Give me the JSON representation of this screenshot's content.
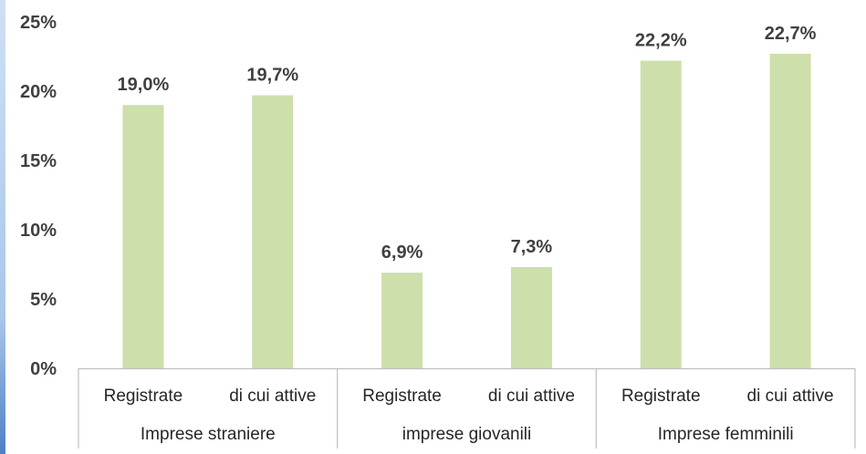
{
  "chart_data": {
    "type": "bar",
    "categories": [
      "Registrate",
      "di cui attive",
      "Registrate",
      "di cui attive",
      "Registrate",
      "di cui attive"
    ],
    "groups": [
      {
        "label": "Imprese straniere",
        "categories": [
          "Registrate",
          "di cui attive"
        ]
      },
      {
        "label": "imprese giovanili",
        "categories": [
          "Registrate",
          "di cui attive"
        ]
      },
      {
        "label": "Imprese femminili",
        "categories": [
          "Registrate",
          "di cui attive"
        ]
      }
    ],
    "values": [
      19.0,
      19.7,
      6.9,
      7.3,
      22.2,
      22.7
    ],
    "data_labels": [
      "19,0%",
      "19,7%",
      "6,9%",
      "7,3%",
      "22,2%",
      "22,7%"
    ],
    "yticks": [
      "0%",
      "5%",
      "10%",
      "15%",
      "20%",
      "25%"
    ],
    "ylim": [
      0,
      25
    ],
    "title": "",
    "xlabel": "",
    "ylabel": "",
    "grid": false,
    "legend": "none",
    "bar_color": "#cddfab",
    "axis_color": "#bfbfbf"
  }
}
